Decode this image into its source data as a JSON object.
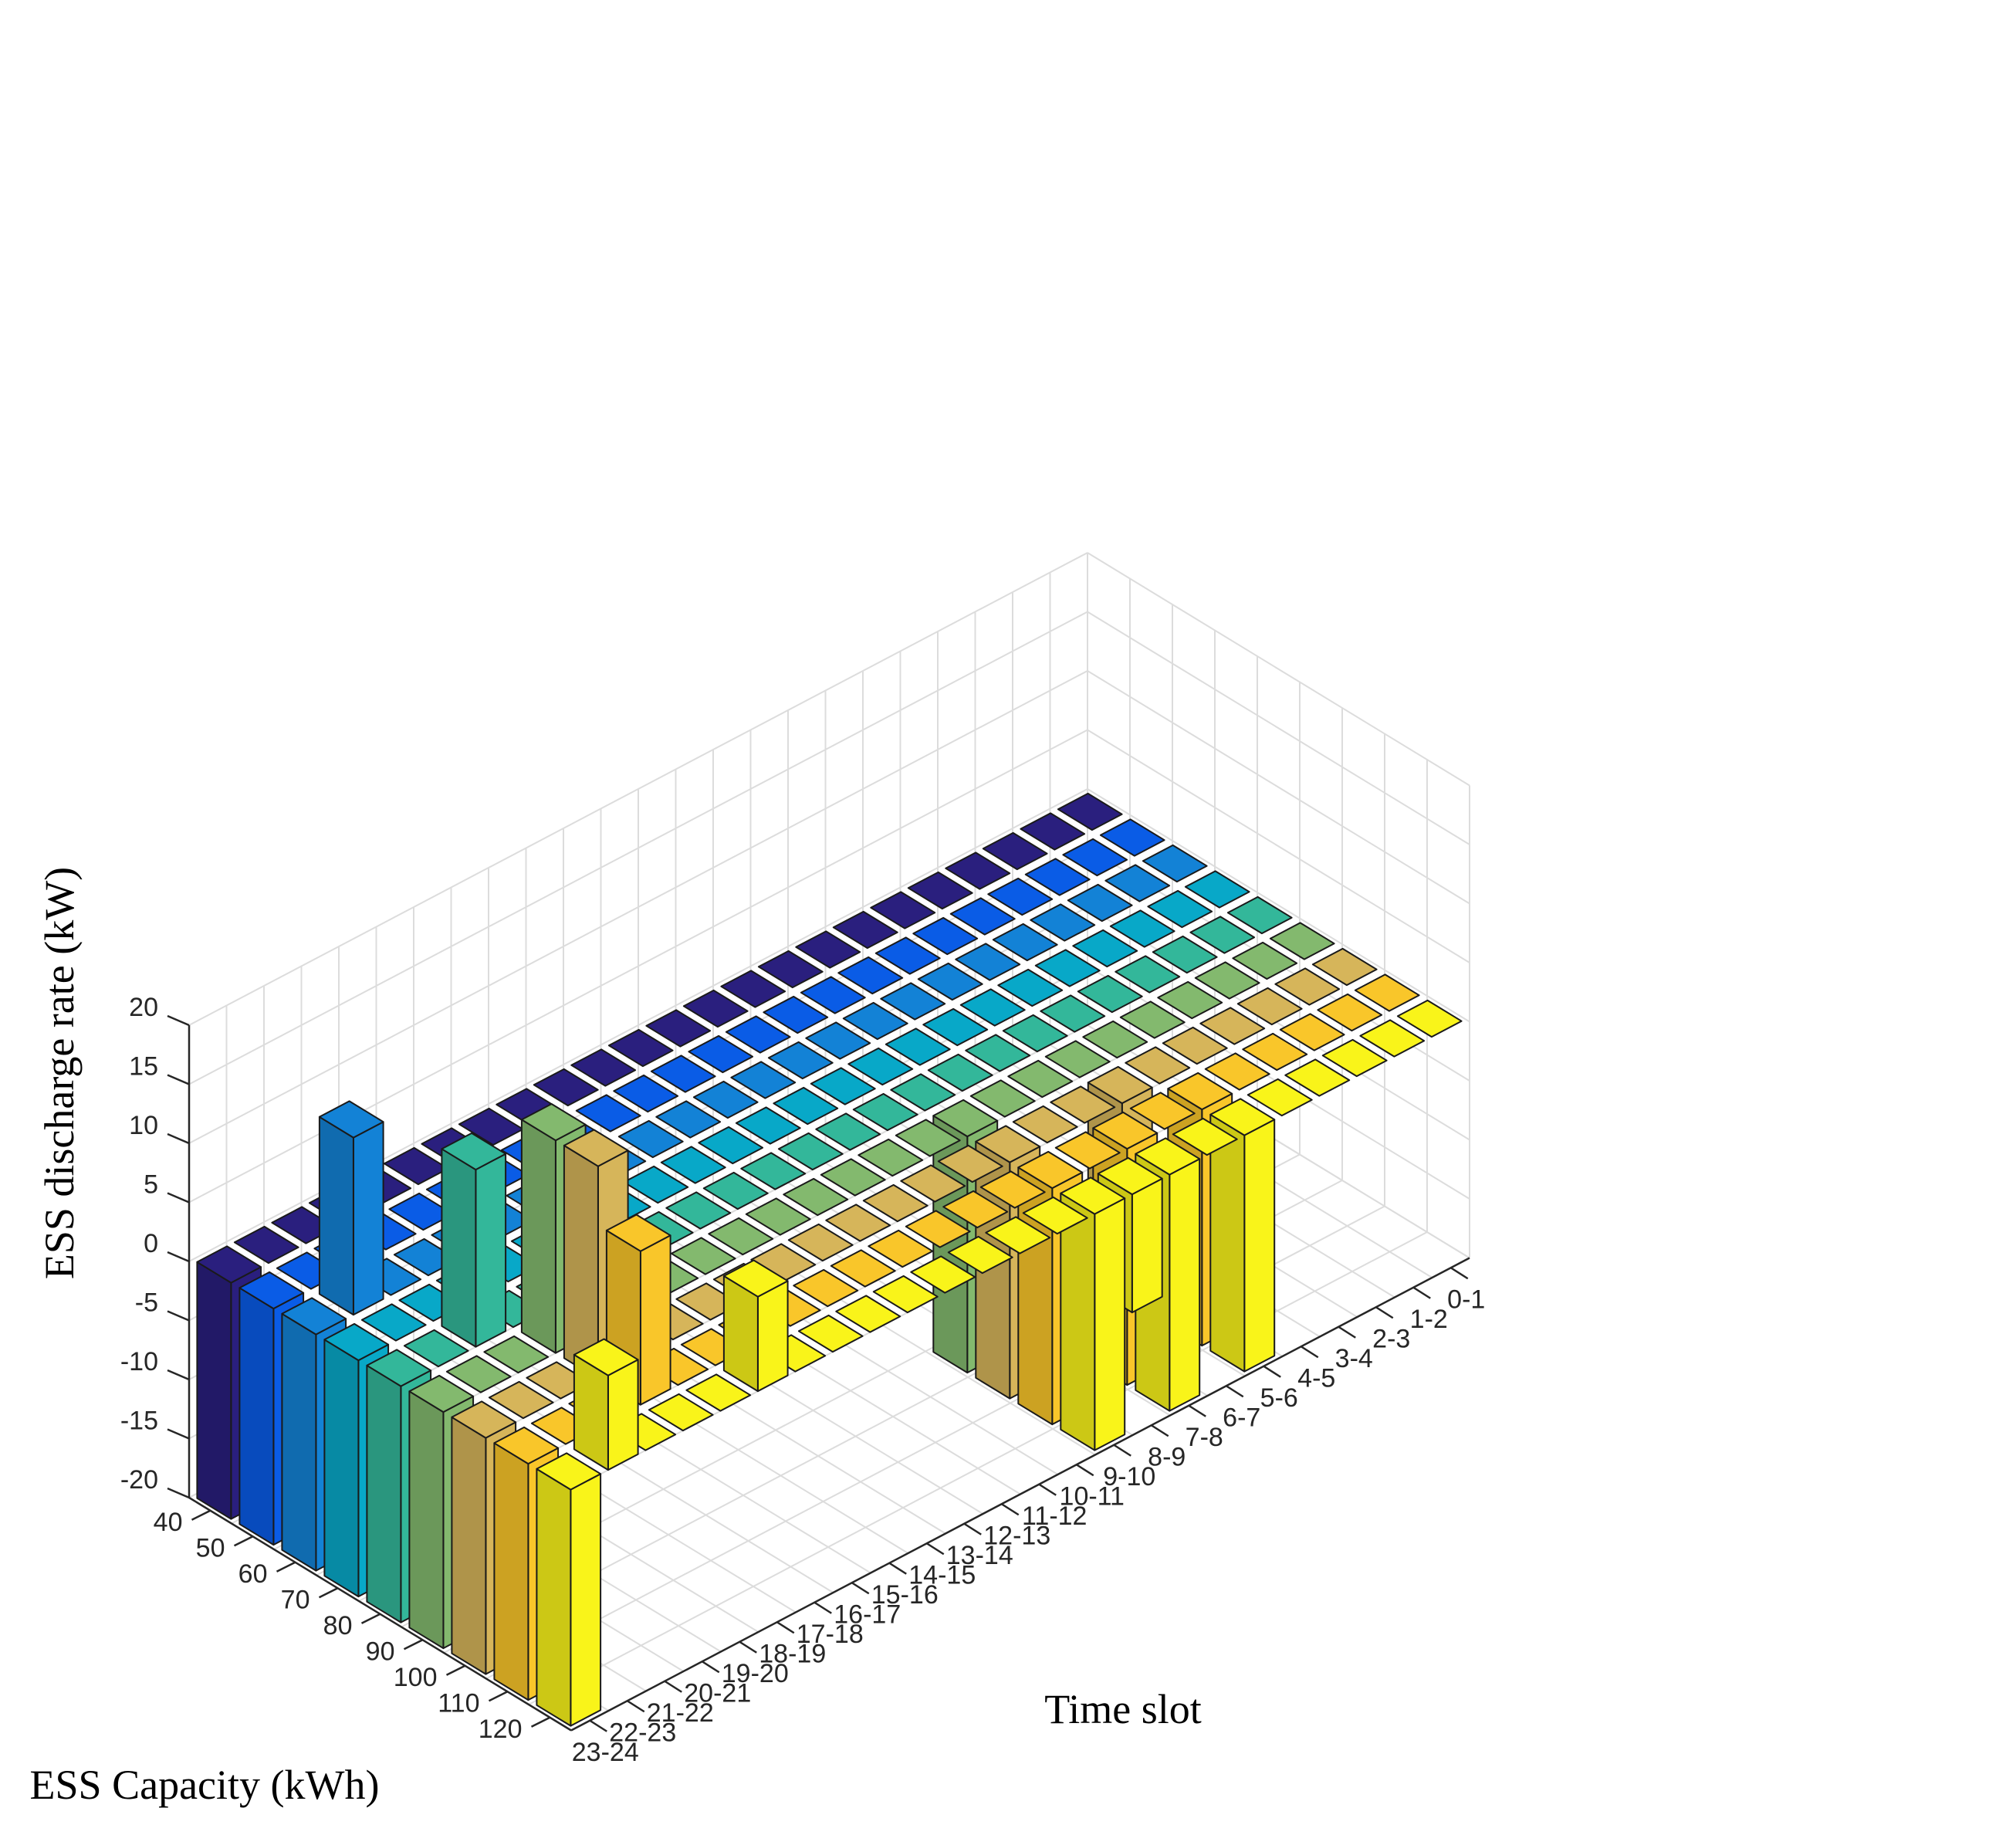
{
  "chart_data": {
    "type": "bar3",
    "xlabel": "Time slot",
    "ylabel": "ESS Capacity (kWh)",
    "zlabel": "ESS discharge rate (kW)",
    "time_slots": [
      "0-1",
      "1-2",
      "2-3",
      "3-4",
      "4-5",
      "5-6",
      "6-7",
      "7-8",
      "8-9",
      "9-10",
      "10-11",
      "11-12",
      "12-13",
      "13-14",
      "14-15",
      "15-16",
      "16-17",
      "17-18",
      "18-19",
      "19-20",
      "20-21",
      "21-22",
      "22-23",
      "23-24"
    ],
    "capacities": [
      "40",
      "50",
      "60",
      "70",
      "80",
      "90",
      "100",
      "110",
      "120"
    ],
    "zlim": [
      -20,
      20
    ],
    "zticks": [
      "20",
      "15",
      "10",
      "5",
      "0",
      "-5",
      "-10",
      "-15",
      "-20"
    ],
    "grid": true,
    "colors": [
      "#2a1f7e",
      "#0a5ce6",
      "#1382d6",
      "#08a8c8",
      "#33b79a",
      "#83b96e",
      "#d6b55a",
      "#f9c62a",
      "#f9f41a"
    ],
    "values": [
      [
        0,
        0,
        0,
        0,
        0,
        0,
        0,
        0,
        0,
        0,
        0,
        0,
        0,
        0,
        0,
        0,
        0,
        0,
        0,
        0,
        0,
        0,
        0,
        -20
      ],
      [
        0,
        0,
        0,
        0,
        0,
        0,
        0,
        0,
        0,
        0,
        0,
        0,
        0,
        0,
        0,
        0,
        0,
        0,
        0,
        0,
        0,
        0,
        0,
        -20
      ],
      [
        0,
        0,
        0,
        0,
        0,
        0,
        0,
        0,
        0,
        0,
        0,
        0,
        0,
        0,
        0,
        0,
        0,
        0,
        0,
        0,
        0,
        0,
        15,
        -20
      ],
      [
        0,
        0,
        0,
        0,
        0,
        0,
        0,
        0,
        0,
        0,
        0,
        0,
        0,
        0,
        0,
        0,
        0,
        0,
        0,
        0,
        0,
        0,
        0,
        -20
      ],
      [
        0,
        0,
        0,
        0,
        0,
        0,
        0,
        0,
        0,
        0,
        0,
        0,
        0,
        0,
        0,
        0,
        0,
        0,
        0,
        0,
        0,
        15,
        0,
        -20
      ],
      [
        0,
        0,
        0,
        0,
        0,
        0,
        0,
        0,
        0,
        -20,
        0,
        0,
        0,
        0,
        0,
        0,
        0,
        0,
        0,
        0,
        18,
        0,
        0,
        -20
      ],
      [
        0,
        0,
        0,
        0,
        0,
        0,
        -20,
        0,
        0,
        -20,
        0,
        0,
        0,
        0,
        0,
        0,
        0,
        0,
        0,
        0,
        18,
        0,
        0,
        -20
      ],
      [
        0,
        0,
        0,
        0,
        0,
        -20,
        0,
        -20,
        0,
        -20,
        0,
        0,
        0,
        0,
        0,
        0,
        0,
        0,
        0,
        0,
        13,
        0,
        0,
        -20
      ],
      [
        0,
        0,
        0,
        0,
        0,
        -20,
        0,
        -20,
        -10,
        -20,
        0,
        0,
        0,
        0,
        0,
        0,
        0,
        0,
        8,
        0,
        0,
        0,
        8,
        -20
      ]
    ]
  }
}
